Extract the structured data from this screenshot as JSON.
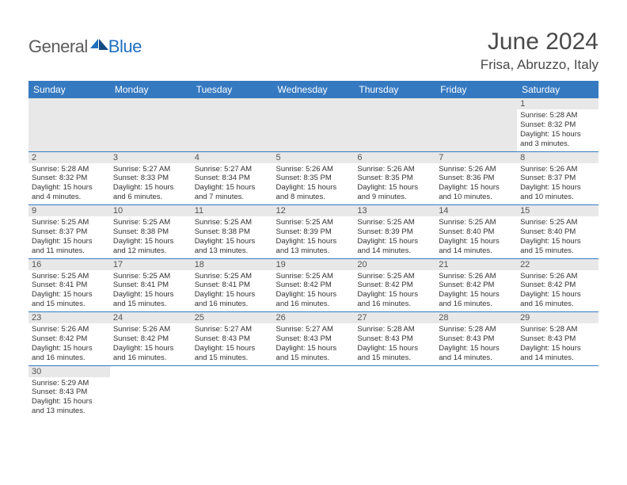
{
  "logo": {
    "general": "General",
    "blue": "Blue"
  },
  "title": {
    "month_year": "June 2024",
    "location": "Frisa, Abruzzo, Italy"
  },
  "colors": {
    "header_bg": "#3579c1",
    "header_fg": "#ffffff",
    "daynum_bg": "#e8e8e8",
    "rule": "#3579c1",
    "text": "#333333",
    "logo_gray": "#5b5b5b",
    "logo_blue": "#1f6fc0"
  },
  "days_of_week": [
    "Sunday",
    "Monday",
    "Tuesday",
    "Wednesday",
    "Thursday",
    "Friday",
    "Saturday"
  ],
  "weeks": [
    [
      null,
      null,
      null,
      null,
      null,
      null,
      {
        "n": "1",
        "sr": "Sunrise: 5:28 AM",
        "ss": "Sunset: 8:32 PM",
        "dl": "Daylight: 15 hours and 3 minutes."
      }
    ],
    [
      {
        "n": "2",
        "sr": "Sunrise: 5:28 AM",
        "ss": "Sunset: 8:32 PM",
        "dl": "Daylight: 15 hours and 4 minutes."
      },
      {
        "n": "3",
        "sr": "Sunrise: 5:27 AM",
        "ss": "Sunset: 8:33 PM",
        "dl": "Daylight: 15 hours and 6 minutes."
      },
      {
        "n": "4",
        "sr": "Sunrise: 5:27 AM",
        "ss": "Sunset: 8:34 PM",
        "dl": "Daylight: 15 hours and 7 minutes."
      },
      {
        "n": "5",
        "sr": "Sunrise: 5:26 AM",
        "ss": "Sunset: 8:35 PM",
        "dl": "Daylight: 15 hours and 8 minutes."
      },
      {
        "n": "6",
        "sr": "Sunrise: 5:26 AM",
        "ss": "Sunset: 8:35 PM",
        "dl": "Daylight: 15 hours and 9 minutes."
      },
      {
        "n": "7",
        "sr": "Sunrise: 5:26 AM",
        "ss": "Sunset: 8:36 PM",
        "dl": "Daylight: 15 hours and 10 minutes."
      },
      {
        "n": "8",
        "sr": "Sunrise: 5:26 AM",
        "ss": "Sunset: 8:37 PM",
        "dl": "Daylight: 15 hours and 10 minutes."
      }
    ],
    [
      {
        "n": "9",
        "sr": "Sunrise: 5:25 AM",
        "ss": "Sunset: 8:37 PM",
        "dl": "Daylight: 15 hours and 11 minutes."
      },
      {
        "n": "10",
        "sr": "Sunrise: 5:25 AM",
        "ss": "Sunset: 8:38 PM",
        "dl": "Daylight: 15 hours and 12 minutes."
      },
      {
        "n": "11",
        "sr": "Sunrise: 5:25 AM",
        "ss": "Sunset: 8:38 PM",
        "dl": "Daylight: 15 hours and 13 minutes."
      },
      {
        "n": "12",
        "sr": "Sunrise: 5:25 AM",
        "ss": "Sunset: 8:39 PM",
        "dl": "Daylight: 15 hours and 13 minutes."
      },
      {
        "n": "13",
        "sr": "Sunrise: 5:25 AM",
        "ss": "Sunset: 8:39 PM",
        "dl": "Daylight: 15 hours and 14 minutes."
      },
      {
        "n": "14",
        "sr": "Sunrise: 5:25 AM",
        "ss": "Sunset: 8:40 PM",
        "dl": "Daylight: 15 hours and 14 minutes."
      },
      {
        "n": "15",
        "sr": "Sunrise: 5:25 AM",
        "ss": "Sunset: 8:40 PM",
        "dl": "Daylight: 15 hours and 15 minutes."
      }
    ],
    [
      {
        "n": "16",
        "sr": "Sunrise: 5:25 AM",
        "ss": "Sunset: 8:41 PM",
        "dl": "Daylight: 15 hours and 15 minutes."
      },
      {
        "n": "17",
        "sr": "Sunrise: 5:25 AM",
        "ss": "Sunset: 8:41 PM",
        "dl": "Daylight: 15 hours and 15 minutes."
      },
      {
        "n": "18",
        "sr": "Sunrise: 5:25 AM",
        "ss": "Sunset: 8:41 PM",
        "dl": "Daylight: 15 hours and 16 minutes."
      },
      {
        "n": "19",
        "sr": "Sunrise: 5:25 AM",
        "ss": "Sunset: 8:42 PM",
        "dl": "Daylight: 15 hours and 16 minutes."
      },
      {
        "n": "20",
        "sr": "Sunrise: 5:25 AM",
        "ss": "Sunset: 8:42 PM",
        "dl": "Daylight: 15 hours and 16 minutes."
      },
      {
        "n": "21",
        "sr": "Sunrise: 5:26 AM",
        "ss": "Sunset: 8:42 PM",
        "dl": "Daylight: 15 hours and 16 minutes."
      },
      {
        "n": "22",
        "sr": "Sunrise: 5:26 AM",
        "ss": "Sunset: 8:42 PM",
        "dl": "Daylight: 15 hours and 16 minutes."
      }
    ],
    [
      {
        "n": "23",
        "sr": "Sunrise: 5:26 AM",
        "ss": "Sunset: 8:42 PM",
        "dl": "Daylight: 15 hours and 16 minutes."
      },
      {
        "n": "24",
        "sr": "Sunrise: 5:26 AM",
        "ss": "Sunset: 8:42 PM",
        "dl": "Daylight: 15 hours and 16 minutes."
      },
      {
        "n": "25",
        "sr": "Sunrise: 5:27 AM",
        "ss": "Sunset: 8:43 PM",
        "dl": "Daylight: 15 hours and 15 minutes."
      },
      {
        "n": "26",
        "sr": "Sunrise: 5:27 AM",
        "ss": "Sunset: 8:43 PM",
        "dl": "Daylight: 15 hours and 15 minutes."
      },
      {
        "n": "27",
        "sr": "Sunrise: 5:28 AM",
        "ss": "Sunset: 8:43 PM",
        "dl": "Daylight: 15 hours and 15 minutes."
      },
      {
        "n": "28",
        "sr": "Sunrise: 5:28 AM",
        "ss": "Sunset: 8:43 PM",
        "dl": "Daylight: 15 hours and 14 minutes."
      },
      {
        "n": "29",
        "sr": "Sunrise: 5:28 AM",
        "ss": "Sunset: 8:43 PM",
        "dl": "Daylight: 15 hours and 14 minutes."
      }
    ],
    [
      {
        "n": "30",
        "sr": "Sunrise: 5:29 AM",
        "ss": "Sunset: 8:43 PM",
        "dl": "Daylight: 15 hours and 13 minutes."
      },
      null,
      null,
      null,
      null,
      null,
      null
    ]
  ]
}
